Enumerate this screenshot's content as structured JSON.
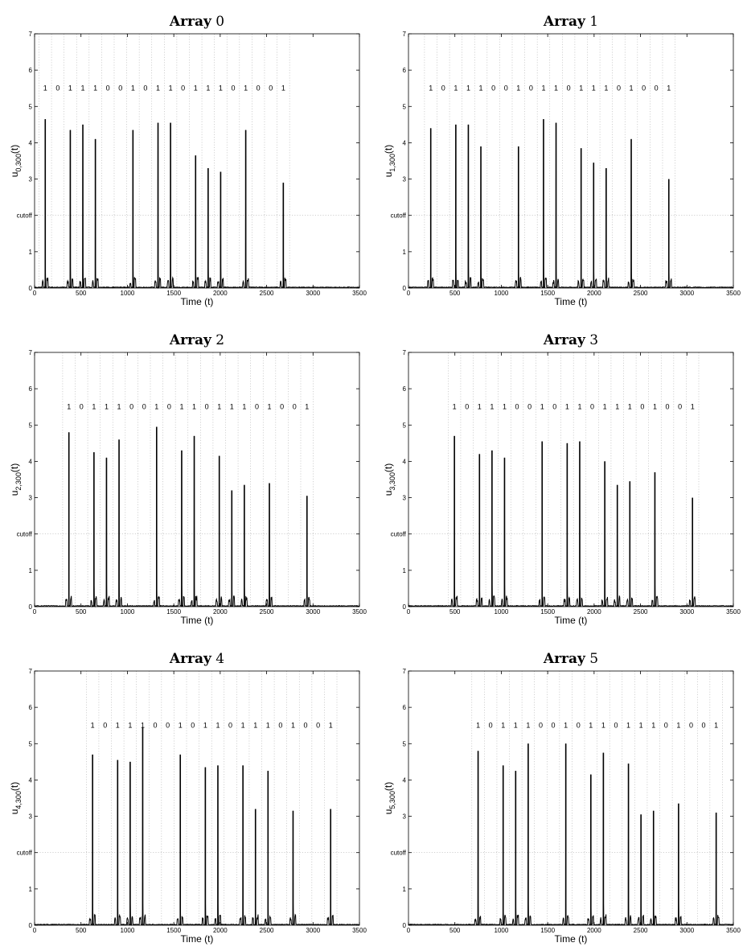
{
  "chart_data": [
    {
      "type": "line",
      "title_bold": "Array",
      "title_num": "0",
      "xlabel": "Time (t)",
      "ylabel_main": "u",
      "ylabel_sub": "0,300",
      "ylabel_tail": "(t)",
      "xlim": [
        0,
        3500
      ],
      "ylim": [
        0,
        7
      ],
      "xticks": [
        "0",
        "500",
        "1000",
        "1500",
        "2000",
        "2500",
        "3000",
        "3500"
      ],
      "yticks": [
        "0",
        "1",
        "cutoff",
        "3",
        "4",
        "5",
        "6",
        "7"
      ],
      "cutoff": 2,
      "grid": "vertical dotted lines every bit period, horizontal dotted line at cutoff",
      "bits_start": 115,
      "bit_period": 135,
      "bits": [
        "1",
        "0",
        "1",
        "1",
        "1",
        "0",
        "0",
        "1",
        "0",
        "1",
        "1",
        "0",
        "1",
        "1",
        "1",
        "0",
        "1",
        "0",
        "0",
        "1"
      ],
      "spikes": [
        [
          115,
          4.65
        ],
        [
          385,
          4.35
        ],
        [
          520,
          4.5
        ],
        [
          655,
          4.1
        ],
        [
          1060,
          4.35
        ],
        [
          1330,
          4.55
        ],
        [
          1465,
          4.55
        ],
        [
          1735,
          3.65
        ],
        [
          1870,
          3.3
        ],
        [
          2005,
          3.2
        ],
        [
          2275,
          4.35
        ],
        [
          2680,
          2.9
        ]
      ]
    },
    {
      "type": "line",
      "title_bold": "Array",
      "title_num": "1",
      "xlabel": "Time (t)",
      "ylabel_main": "u",
      "ylabel_sub": "1,300",
      "ylabel_tail": "(t)",
      "xlim": [
        0,
        3500
      ],
      "ylim": [
        0,
        7
      ],
      "xticks": [
        "0",
        "500",
        "1000",
        "1500",
        "2000",
        "2500",
        "3000",
        "3500"
      ],
      "yticks": [
        "0",
        "1",
        "cutoff",
        "3",
        "4",
        "5",
        "6",
        "7"
      ],
      "cutoff": 2,
      "grid": "vertical dotted lines every bit period, horizontal dotted line at cutoff",
      "bits_start": 240,
      "bit_period": 135,
      "bits": [
        "1",
        "0",
        "1",
        "1",
        "1",
        "0",
        "0",
        "1",
        "0",
        "1",
        "1",
        "0",
        "1",
        "1",
        "1",
        "0",
        "1",
        "0",
        "0",
        "1"
      ],
      "spikes": [
        [
          240,
          4.4
        ],
        [
          510,
          4.5
        ],
        [
          645,
          4.5
        ],
        [
          780,
          3.9
        ],
        [
          1185,
          3.9
        ],
        [
          1455,
          4.65
        ],
        [
          1590,
          4.55
        ],
        [
          1860,
          3.85
        ],
        [
          1995,
          3.45
        ],
        [
          2130,
          3.3
        ],
        [
          2400,
          4.1
        ],
        [
          2805,
          3.0
        ]
      ]
    },
    {
      "type": "line",
      "title_bold": "Array",
      "title_num": "2",
      "xlabel": "Time (t)",
      "ylabel_main": "u",
      "ylabel_sub": "2,300",
      "ylabel_tail": "(t)",
      "xlim": [
        0,
        3500
      ],
      "ylim": [
        0,
        7
      ],
      "xticks": [
        "0",
        "500",
        "1000",
        "1500",
        "2000",
        "2500",
        "3000",
        "3500"
      ],
      "yticks": [
        "0",
        "1",
        "cutoff",
        "3",
        "4",
        "5",
        "6",
        "7"
      ],
      "cutoff": 2,
      "grid": "vertical dotted lines every bit period, horizontal dotted line at cutoff",
      "bits_start": 370,
      "bit_period": 135,
      "bits": [
        "1",
        "0",
        "1",
        "1",
        "1",
        "0",
        "0",
        "1",
        "0",
        "1",
        "1",
        "0",
        "1",
        "1",
        "1",
        "0",
        "1",
        "0",
        "0",
        "1"
      ],
      "spikes": [
        [
          370,
          4.8
        ],
        [
          640,
          4.25
        ],
        [
          775,
          4.1
        ],
        [
          910,
          4.6
        ],
        [
          1315,
          4.95
        ],
        [
          1585,
          4.3
        ],
        [
          1720,
          4.7
        ],
        [
          1990,
          4.15
        ],
        [
          2125,
          3.2
        ],
        [
          2260,
          3.35
        ],
        [
          2530,
          3.4
        ],
        [
          2935,
          3.05
        ]
      ]
    },
    {
      "type": "line",
      "title_bold": "Array",
      "title_num": "3",
      "xlabel": "Time (t)",
      "ylabel_main": "u",
      "ylabel_sub": "3,300",
      "ylabel_tail": "(t)",
      "xlim": [
        0,
        3500
      ],
      "ylim": [
        0,
        7
      ],
      "xticks": [
        "0",
        "500",
        "1000",
        "1500",
        "2000",
        "2500",
        "3000",
        "3500"
      ],
      "yticks": [
        "0",
        "1",
        "cutoff",
        "3",
        "4",
        "5",
        "6",
        "7"
      ],
      "cutoff": 2,
      "grid": "vertical dotted lines every bit period, horizontal dotted line at cutoff",
      "bits_start": 495,
      "bit_period": 135,
      "bits": [
        "1",
        "0",
        "1",
        "1",
        "1",
        "0",
        "0",
        "1",
        "0",
        "1",
        "1",
        "0",
        "1",
        "1",
        "1",
        "0",
        "1",
        "0",
        "0",
        "1"
      ],
      "spikes": [
        [
          495,
          4.7
        ],
        [
          765,
          4.2
        ],
        [
          900,
          4.3
        ],
        [
          1035,
          4.1
        ],
        [
          1440,
          4.55
        ],
        [
          1710,
          4.5
        ],
        [
          1845,
          4.55
        ],
        [
          2115,
          4.0
        ],
        [
          2250,
          3.35
        ],
        [
          2385,
          3.45
        ],
        [
          2655,
          3.7
        ],
        [
          3060,
          3.0
        ]
      ]
    },
    {
      "type": "line",
      "title_bold": "Array",
      "title_num": "4",
      "xlabel": "Time (t)",
      "ylabel_main": "u",
      "ylabel_sub": "4,300",
      "ylabel_tail": "(t)",
      "xlim": [
        0,
        3500
      ],
      "ylim": [
        0,
        7
      ],
      "xticks": [
        "0",
        "500",
        "1000",
        "1500",
        "2000",
        "2500",
        "3000",
        "3500"
      ],
      "yticks": [
        "0",
        "1",
        "cutoff",
        "3",
        "4",
        "5",
        "6",
        "7"
      ],
      "cutoff": 2,
      "grid": "vertical dotted lines every bit period, horizontal dotted line at cutoff",
      "bits_start": 625,
      "bit_period": 135,
      "bits": [
        "1",
        "0",
        "1",
        "1",
        "1",
        "0",
        "0",
        "1",
        "0",
        "1",
        "1",
        "0",
        "1",
        "1",
        "1",
        "0",
        "1",
        "0",
        "0",
        "1"
      ],
      "spikes": [
        [
          625,
          4.7
        ],
        [
          895,
          4.55
        ],
        [
          1030,
          4.5
        ],
        [
          1165,
          5.45
        ],
        [
          1570,
          4.7
        ],
        [
          1840,
          4.35
        ],
        [
          1975,
          4.4
        ],
        [
          2245,
          4.4
        ],
        [
          2380,
          3.2
        ],
        [
          2515,
          4.25
        ],
        [
          2785,
          3.15
        ],
        [
          3190,
          3.2
        ]
      ]
    },
    {
      "type": "line",
      "title_bold": "Array",
      "title_num": "5",
      "xlabel": "Time (t)",
      "ylabel_main": "u",
      "ylabel_sub": "5,300",
      "ylabel_tail": "(t)",
      "xlim": [
        0,
        3500
      ],
      "ylim": [
        0,
        7
      ],
      "xticks": [
        "0",
        "500",
        "1000",
        "1500",
        "2000",
        "2500",
        "3000",
        "3500"
      ],
      "yticks": [
        "0",
        "1",
        "cutoff",
        "3",
        "4",
        "5",
        "6",
        "7"
      ],
      "cutoff": 2,
      "grid": "vertical dotted lines every bit period, horizontal dotted line at cutoff",
      "bits_start": 750,
      "bit_period": 135,
      "bits": [
        "1",
        "0",
        "1",
        "1",
        "1",
        "0",
        "0",
        "1",
        "0",
        "1",
        "1",
        "0",
        "1",
        "1",
        "1",
        "0",
        "1",
        "0",
        "0",
        "1"
      ],
      "spikes": [
        [
          750,
          4.8
        ],
        [
          1020,
          4.4
        ],
        [
          1155,
          4.25
        ],
        [
          1290,
          5.0
        ],
        [
          1695,
          5.0
        ],
        [
          1965,
          4.15
        ],
        [
          2100,
          4.75
        ],
        [
          2370,
          4.45
        ],
        [
          2505,
          3.05
        ],
        [
          2640,
          3.15
        ],
        [
          2910,
          3.35
        ],
        [
          3315,
          3.1
        ]
      ]
    }
  ]
}
